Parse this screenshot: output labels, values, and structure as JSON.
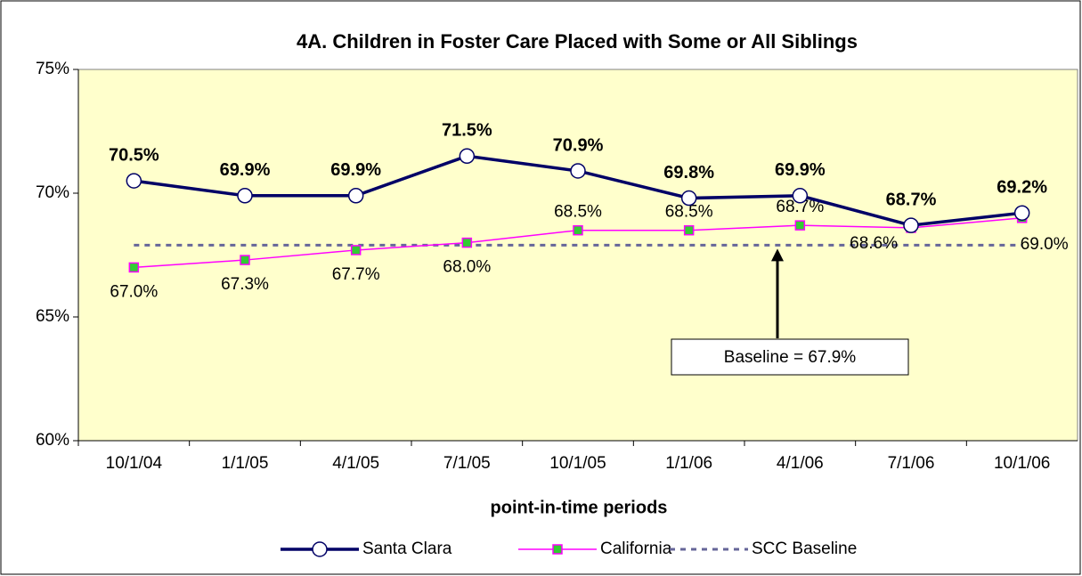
{
  "chart_data": {
    "type": "line",
    "title": "4A. Children in Foster Care Placed with Some or All Siblings",
    "x_label": "point-in-time periods",
    "categories": [
      "10/1/04",
      "1/1/05",
      "4/1/05",
      "7/1/05",
      "10/1/05",
      "1/1/06",
      "4/1/06",
      "7/1/06",
      "10/1/06"
    ],
    "series": [
      {
        "name": "Santa Clara",
        "color": "#000066",
        "values": [
          70.5,
          69.9,
          69.9,
          71.5,
          70.9,
          69.8,
          69.9,
          68.7,
          69.2
        ],
        "value_labels": [
          "70.5%",
          "69.9%",
          "69.9%",
          "71.5%",
          "70.9%",
          "69.8%",
          "69.9%",
          "68.7%",
          "69.2%"
        ]
      },
      {
        "name": "California",
        "color": "#ff00ff",
        "marker_color": "#33cc33",
        "values": [
          67.0,
          67.3,
          67.7,
          68.0,
          68.5,
          68.5,
          68.7,
          68.6,
          69.0
        ],
        "value_labels": [
          "67.0%",
          "67.3%",
          "67.7%",
          "68.0%",
          "68.5%",
          "68.5%",
          "68.7%",
          "68.6%",
          "69.0%"
        ]
      },
      {
        "name": "SCC Baseline",
        "color": "#666699",
        "values": [
          67.9,
          67.9,
          67.9,
          67.9,
          67.9,
          67.9,
          67.9,
          67.9,
          67.9
        ]
      }
    ],
    "annotation": "Baseline = 67.9%",
    "ylim": [
      60,
      75
    ],
    "yticks": [
      {
        "value": 60,
        "label": "60%"
      },
      {
        "value": 65,
        "label": "65%"
      },
      {
        "value": 70,
        "label": "70%"
      },
      {
        "value": 75,
        "label": "75%"
      }
    ],
    "legend": "bottom",
    "plot_background": "#ffffcc"
  }
}
